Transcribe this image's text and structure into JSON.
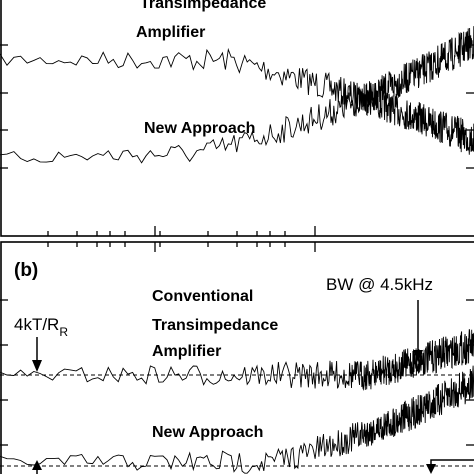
{
  "panel_a": {
    "annotations": [
      "Transimpedance",
      "Amplifier",
      "New Approach"
    ]
  },
  "panel_b": {
    "label": "(b)",
    "conventional": [
      "Conventional",
      "Transimpedance",
      "Amplifier"
    ],
    "bandwidth": "BW @ 4.5kHz",
    "thermal": "4kT/R",
    "thermal_sub": "R",
    "new_approach": "New Approach"
  }
}
